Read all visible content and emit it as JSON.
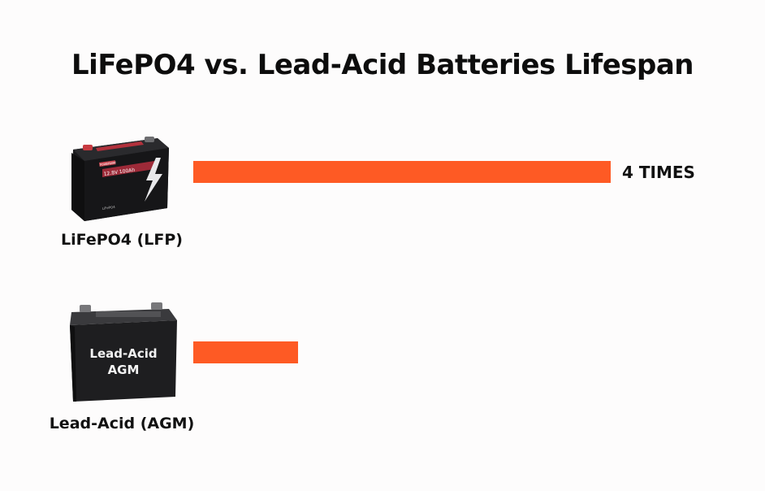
{
  "chart_data": {
    "type": "bar",
    "orientation": "horizontal",
    "title": "LiFePO4 vs. Lead-Acid Batteries Lifespan",
    "xlabel": "",
    "ylabel": "",
    "grid": false,
    "legend": "none",
    "categories": [
      "LiFePO4 (LFP)",
      "Lead-Acid (AGM)"
    ],
    "values": [
      4,
      1
    ],
    "value_labels": [
      "4 TIMES",
      ""
    ],
    "xlim": [
      0,
      4
    ],
    "bar_color": "#fe5a24"
  },
  "batteries": [
    {
      "name": "lifepo4-battery",
      "screen_text": "12.8V 100Ah",
      "small_text": "LiFePO4",
      "brand_badge": "POWERWAY"
    },
    {
      "name": "lead-acid-battery",
      "case_text_line1": "Lead-Acid",
      "case_text_line2": "AGM"
    }
  ]
}
